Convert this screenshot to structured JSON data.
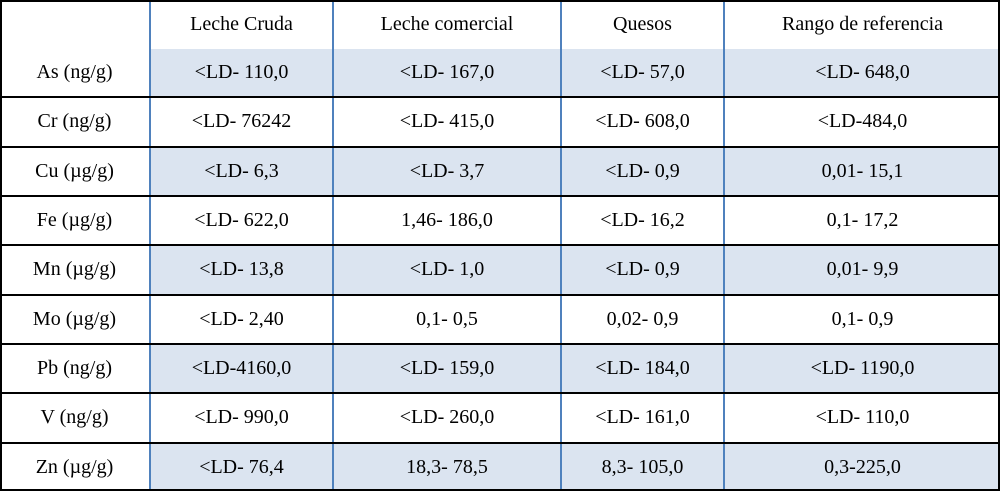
{
  "table": {
    "headers": [
      "",
      "Leche Cruda",
      "Leche comercial",
      "Quesos",
      "Rango de referencia"
    ],
    "rows": [
      {
        "label": "As (ng/g)",
        "values": [
          "<LD- 110,0",
          "<LD- 167,0",
          "<LD- 57,0",
          "<LD- 648,0"
        ]
      },
      {
        "label": "Cr (ng/g)",
        "values": [
          "<LD- 76242",
          "<LD- 415,0",
          "<LD- 608,0",
          "<LD-484,0"
        ]
      },
      {
        "label": "Cu (µg/g)",
        "values": [
          "<LD- 6,3",
          "<LD- 3,7",
          "<LD- 0,9",
          "0,01- 15,1"
        ]
      },
      {
        "label": "Fe (µg/g)",
        "values": [
          "<LD- 622,0",
          "1,46- 186,0",
          "<LD- 16,2",
          "0,1- 17,2"
        ]
      },
      {
        "label": "Mn (µg/g)",
        "values": [
          "<LD- 13,8",
          "<LD- 1,0",
          "<LD- 0,9",
          "0,01- 9,9"
        ]
      },
      {
        "label": "Mo (µg/g)",
        "values": [
          "<LD- 2,40",
          "0,1- 0,5",
          "0,02- 0,9",
          "0,1- 0,9"
        ]
      },
      {
        "label": "Pb (ng/g)",
        "values": [
          "<LD-4160,0",
          "<LD- 159,0",
          "<LD- 184,0",
          "<LD- 1190,0"
        ]
      },
      {
        "label": "V (ng/g)",
        "values": [
          "<LD- 990,0",
          "<LD- 260,0",
          "<LD- 161,0",
          "<LD- 110,0"
        ]
      },
      {
        "label": "Zn (µg/g)",
        "values": [
          "<LD- 76,4",
          "18,3- 78,5",
          "8,3- 105,0",
          "0,3-225,0"
        ]
      }
    ]
  },
  "colors": {
    "cell_fill": "#dbe4f0",
    "column_rule": "#4f81bd",
    "row_rule": "#000000"
  }
}
